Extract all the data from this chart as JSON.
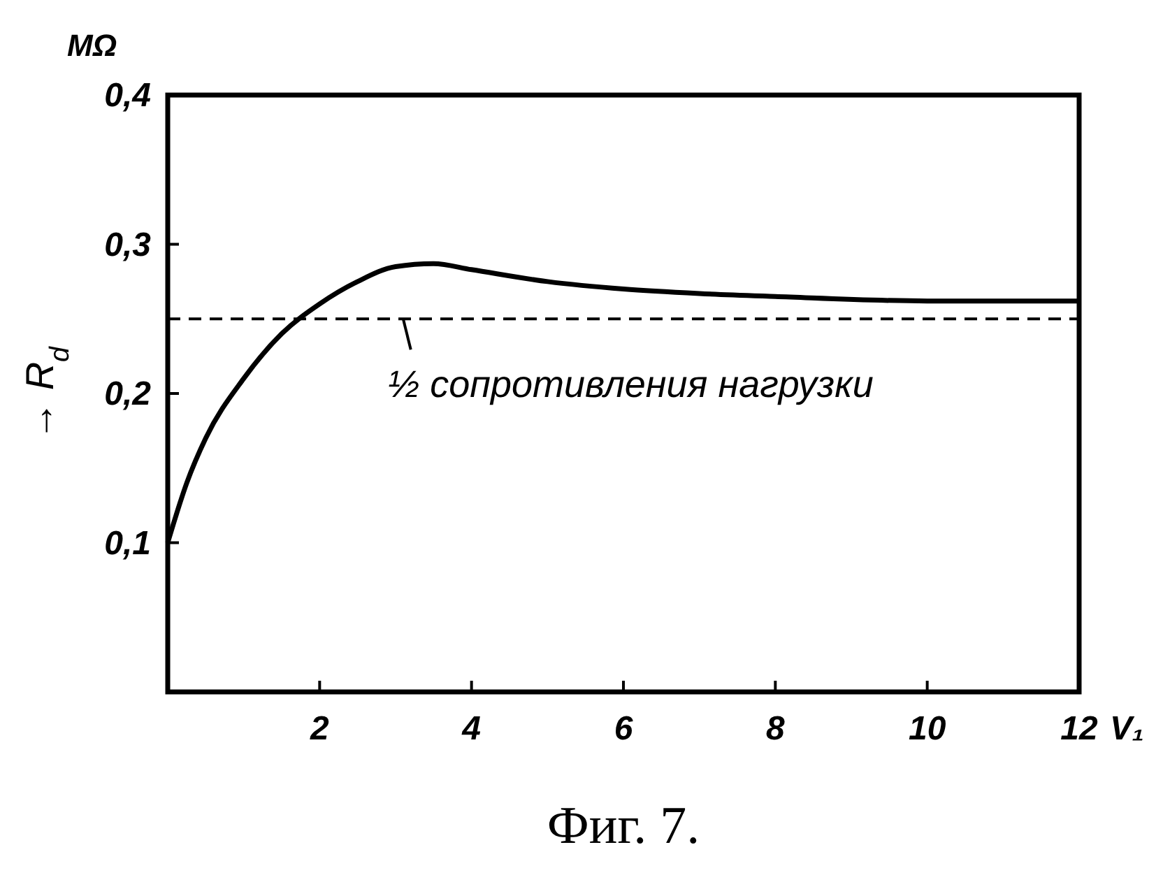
{
  "chart_data": {
    "type": "line",
    "xlabel": "V₁",
    "ylabel": "→ R$_{d}$",
    "annotations": [
      "MΩ",
      "Фиг. 7."
    ],
    "xlim": [
      0,
      12
    ],
    "xticks": [
      2,
      4,
      6,
      8,
      10,
      12
    ],
    "ylim": [
      0,
      0.4
    ],
    "yticks": [
      {
        "value": 0.1,
        "label": "0,1"
      },
      {
        "value": 0.2,
        "label": "0,2"
      },
      {
        "value": 0.3,
        "label": "0,3"
      },
      {
        "value": 0.4,
        "label": "0,4"
      }
    ],
    "grid": false,
    "series": [
      {
        "color": "#000000",
        "x": [
          0,
          0.25,
          0.5,
          1,
          1.5,
          2,
          2.5,
          3,
          3.5,
          4,
          5,
          6,
          7,
          8,
          10,
          12
        ],
        "values": [
          0.1,
          0.14,
          0.17,
          0.21,
          0.24,
          0.26,
          0.275,
          0.285,
          0.287,
          0.283,
          0.275,
          0.27,
          0.267,
          0.265,
          0.262,
          0.262
        ]
      }
    ],
    "ref_lines": [
      {
        "axis": "y",
        "value": 0.25,
        "label": "½ сопротивления нагрузки",
        "line_style": "dashed",
        "color": "#000000"
      }
    ]
  }
}
